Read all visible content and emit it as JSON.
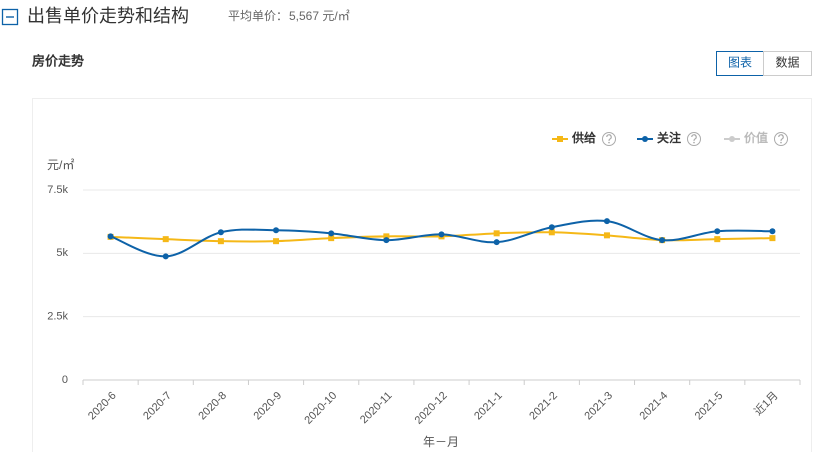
{
  "header": {
    "title": "出售单价走势和结构",
    "avg_label": "平均单价：",
    "avg_value": "5,567 元/㎡"
  },
  "section_title": "房价走势",
  "tabs": [
    {
      "label": "图表",
      "active": true
    },
    {
      "label": "数据",
      "active": false
    }
  ],
  "chart_data": {
    "type": "line",
    "y_unit": "元/㎡",
    "xlabel": "年－月",
    "categories": [
      "2020-6",
      "2020-7",
      "2020-8",
      "2020-9",
      "2020-10",
      "2020-11",
      "2020-12",
      "2021-1",
      "2021-2",
      "2021-3",
      "2021-4",
      "2021-5",
      "近1月"
    ],
    "series": [
      {
        "name": "供给",
        "color": "#f5b817",
        "visible": true,
        "values": [
          5650,
          5560,
          5480,
          5480,
          5600,
          5670,
          5670,
          5790,
          5830,
          5710,
          5520,
          5560,
          5600
        ]
      },
      {
        "name": "关注",
        "color": "#0d62a8",
        "visible": true,
        "values": [
          5670,
          4880,
          5830,
          5910,
          5790,
          5520,
          5750,
          5440,
          6030,
          6270,
          5520,
          5870,
          5870
        ]
      },
      {
        "name": "价值",
        "color": "#cccccc",
        "visible": false,
        "values": [
          null,
          null,
          null,
          null,
          null,
          null,
          null,
          null,
          null,
          null,
          null,
          null,
          null
        ]
      }
    ],
    "ylim": [
      0,
      7500
    ],
    "yticks": [
      0,
      {
        "value": 2500,
        "label": "2.5k"
      },
      {
        "value": 5000,
        "label": "5k"
      },
      {
        "value": 7500,
        "label": "7.5k"
      }
    ],
    "grid": true
  }
}
